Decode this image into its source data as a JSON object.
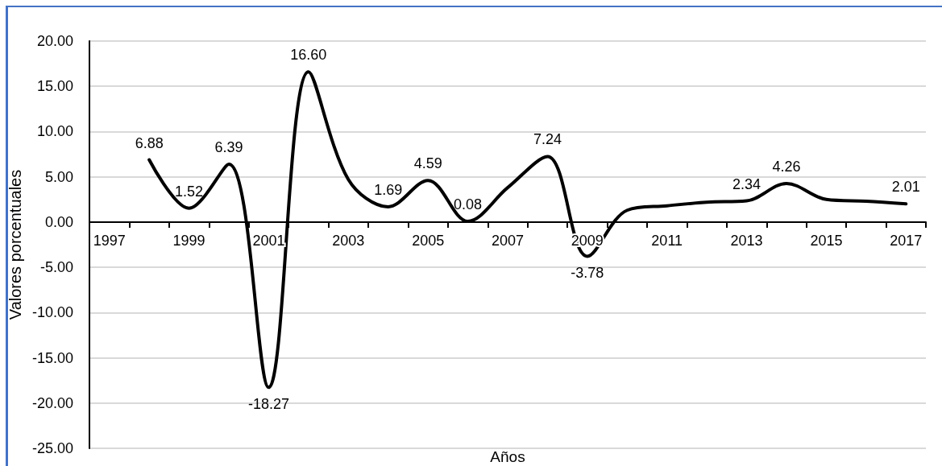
{
  "chart_data": {
    "type": "line",
    "xlabel": "Años",
    "ylabel": "Valores porcentuales",
    "categories": [
      "1997",
      null,
      "1999",
      null,
      "2001",
      null,
      "2003",
      null,
      "2005",
      null,
      "2007",
      null,
      "2009",
      null,
      "2011",
      null,
      "2013",
      null,
      "2015",
      null,
      "2017"
    ],
    "series": [
      {
        "color": "#000000",
        "values": [
          null,
          6.88,
          1.52,
          6.39,
          -18.27,
          16.6,
          4.7,
          1.69,
          4.59,
          0.08,
          3.8,
          7.24,
          -3.78,
          1.3,
          1.8,
          2.2,
          2.34,
          4.26,
          2.5,
          2.3,
          2.01
        ],
        "value_labels": [
          null,
          "6.88",
          "1.52",
          "6.39",
          "-18.27",
          "16.60",
          null,
          "1.69",
          "4.59",
          "0.08",
          null,
          "7.24",
          "-3.78",
          null,
          null,
          null,
          "2.34",
          "4.26",
          null,
          null,
          "2.01"
        ]
      }
    ],
    "ylim": [
      -25,
      20
    ],
    "yticks": [
      {
        "value": -25,
        "label": "-25.00"
      },
      {
        "value": -20,
        "label": "-20.00"
      },
      {
        "value": -15,
        "label": "-15.00"
      },
      {
        "value": -10,
        "label": "-10.00"
      },
      {
        "value": -5,
        "label": "-5.00"
      },
      {
        "value": 0,
        "label": "0.00"
      },
      {
        "value": 5,
        "label": "5.00"
      },
      {
        "value": 10,
        "label": "10.00"
      },
      {
        "value": 15,
        "label": "15.00"
      },
      {
        "value": 20,
        "label": "20.00"
      }
    ],
    "grid": "y",
    "legend": false,
    "marker": "none",
    "line_style": "solid"
  }
}
